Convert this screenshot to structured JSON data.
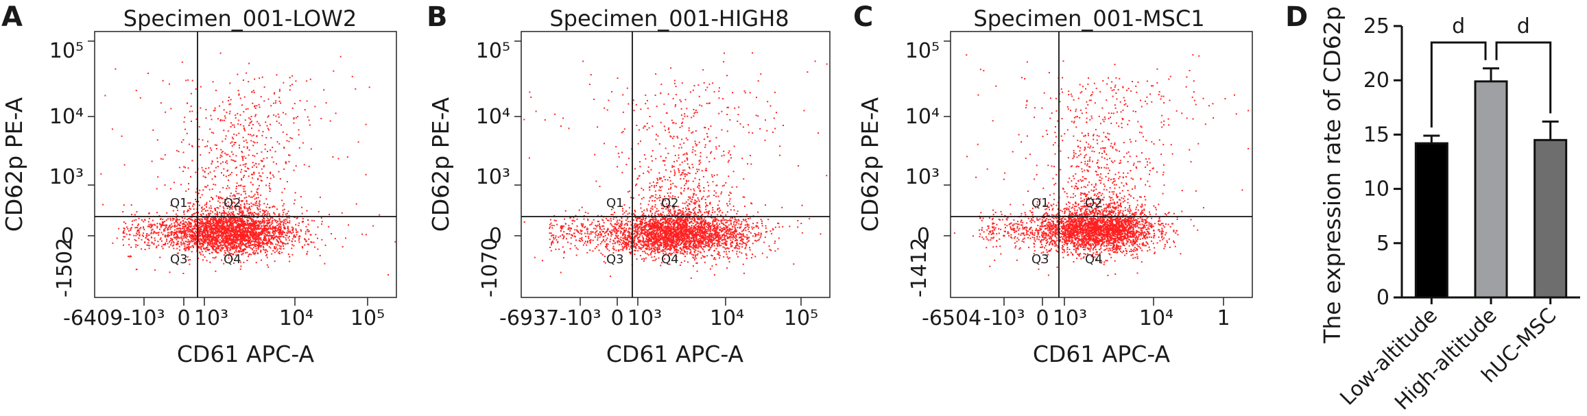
{
  "panels": [
    {
      "letter": "A",
      "title": "Specimen_001-LOW2",
      "xlabel": "CD61 APC-A",
      "ylabel": "CD62p PE-A",
      "xmin_label": "-6409",
      "ymin_label": "-1502",
      "x_ticks": [
        "-10³",
        "0",
        "10³",
        "10⁴",
        "10⁵"
      ],
      "y_ticks": [
        "0",
        "10³",
        "10⁴",
        "10⁵"
      ],
      "quadrants": [
        "Q1",
        "Q2",
        "Q3",
        "Q4"
      ]
    },
    {
      "letter": "B",
      "title": "Specimen_001-HIGH8",
      "xlabel": "CD61 APC-A",
      "ylabel": "CD62p PE-A",
      "xmin_label": "-6937",
      "ymin_label": "-1070",
      "x_ticks": [
        "-10³",
        "0",
        "10³",
        "10⁴",
        "10⁵"
      ],
      "y_ticks": [
        "0",
        "10³",
        "10⁴",
        "10⁵"
      ],
      "quadrants": [
        "Q1",
        "Q2",
        "Q3",
        "Q4"
      ]
    },
    {
      "letter": "C",
      "title": "Specimen_001-MSC1",
      "xlabel": "CD61 APC-A",
      "ylabel": "CD62p PE-A",
      "xmin_label": "-6504",
      "ymin_label": "-1412",
      "x_ticks": [
        "-10³",
        "0",
        "10³",
        "10⁴",
        "1"
      ],
      "y_ticks": [
        "0",
        "10³",
        "10⁴",
        "10⁵"
      ],
      "quadrants": [
        "Q1",
        "Q2",
        "Q3",
        "Q4"
      ]
    }
  ],
  "chart_data": [
    {
      "type": "scatter",
      "panel": "A",
      "title": "Specimen_001-LOW2",
      "xlabel": "CD61 APC-A",
      "ylabel": "CD62p PE-A",
      "point_color": "#ff2020"
    },
    {
      "type": "scatter",
      "panel": "B",
      "title": "Specimen_001-HIGH8",
      "xlabel": "CD61 APC-A",
      "ylabel": "CD62p PE-A",
      "point_color": "#ff2020"
    },
    {
      "type": "scatter",
      "panel": "C",
      "title": "Specimen_001-MSC1",
      "xlabel": "CD61 APC-A",
      "ylabel": "CD62p PE-A",
      "point_color": "#ff2020"
    },
    {
      "type": "bar",
      "panel": "D",
      "categories": [
        "Low-altitude",
        "High-altitude",
        "hUC-MSC"
      ],
      "values": [
        14.2,
        19.9,
        14.5
      ],
      "errors": [
        0.7,
        1.2,
        1.7
      ],
      "bar_colors": [
        "#000000",
        "#9fa0a4",
        "#6e6e6e"
      ],
      "ylabel": "The expression rate of CD62p",
      "ylim": [
        0,
        25
      ],
      "yticks": [
        0,
        5,
        10,
        15,
        20,
        25
      ],
      "significance": [
        {
          "from": 0,
          "to": 1,
          "label": "d"
        },
        {
          "from": 1,
          "to": 2,
          "label": "d"
        }
      ]
    }
  ],
  "panel_d": {
    "letter": "D"
  }
}
